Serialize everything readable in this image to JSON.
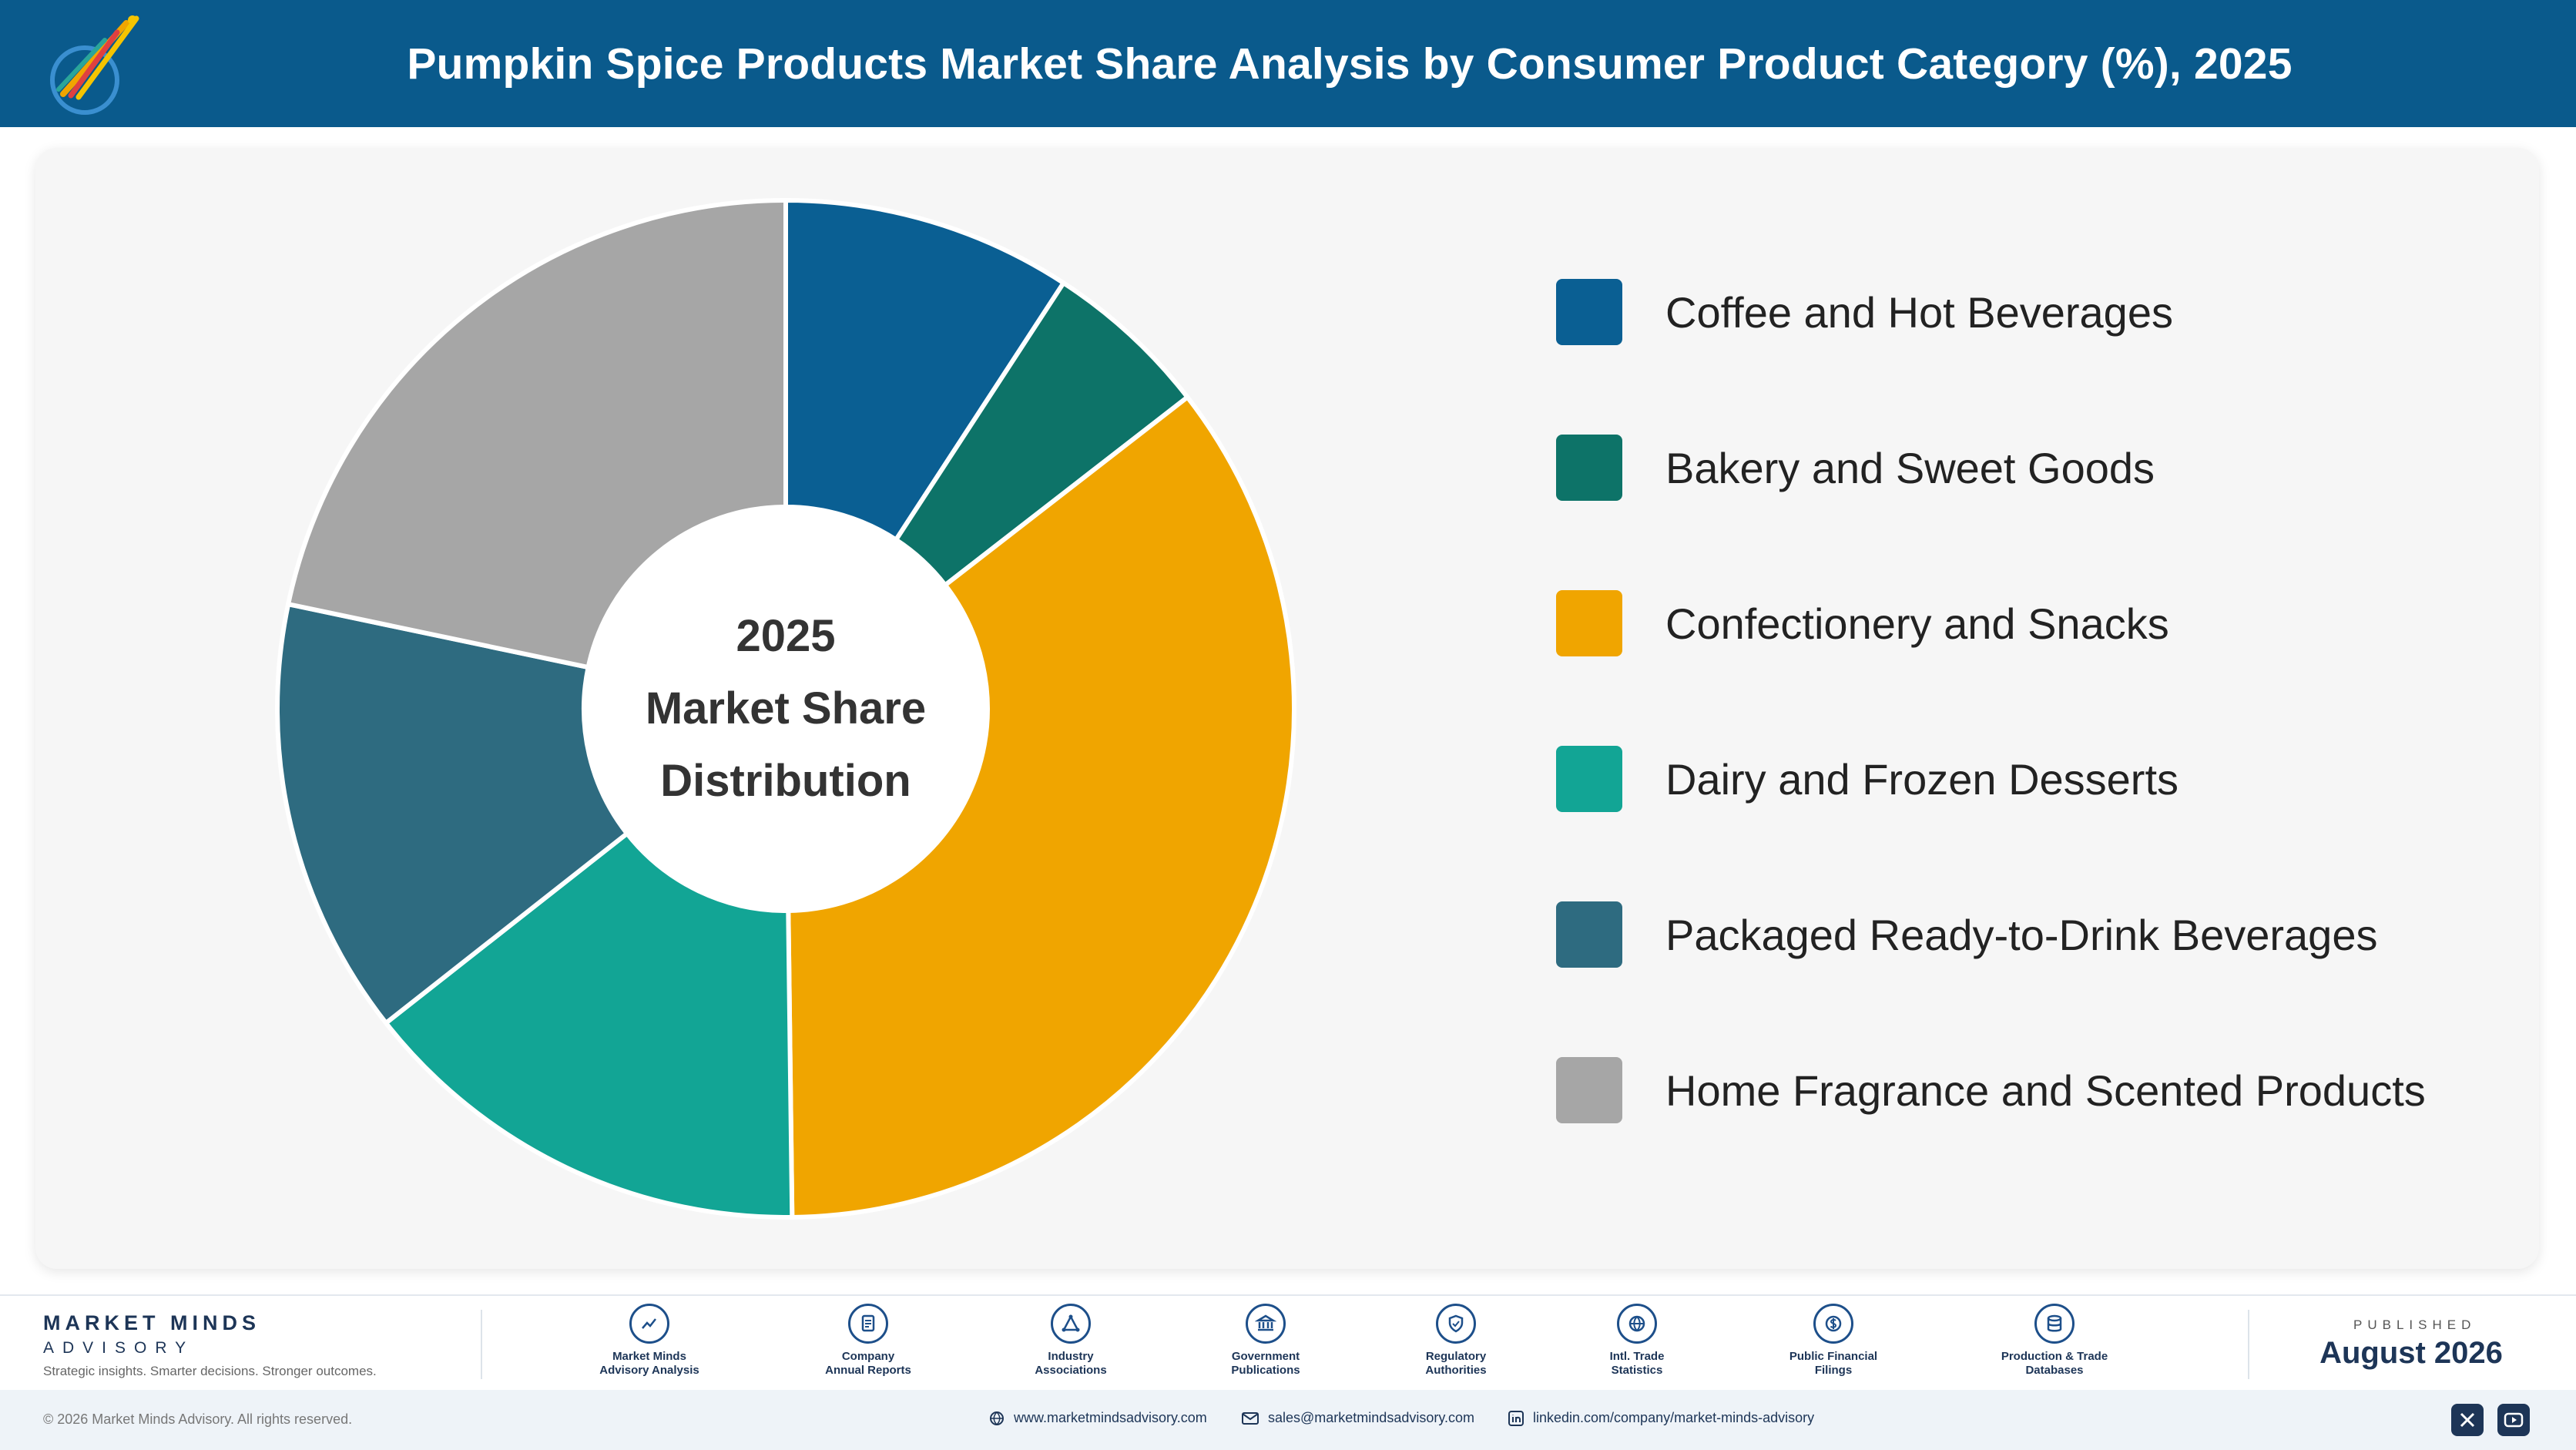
{
  "header": {
    "title": "Pumpkin Spice Products Market Share Analysis by Consumer Product Category (%), 2025",
    "logo_icon": "market-minds-logo"
  },
  "chart_data": {
    "type": "pie",
    "title": "Pumpkin Spice Products Market Share Analysis by Consumer Product Category (%), 2025",
    "center_label": [
      "2025",
      "Market Share",
      "Distribution"
    ],
    "categories": [
      "Coffee and Hot Beverages",
      "Bakery and Sweet Goods",
      "Confectionery and Snacks",
      "Dairy and Frozen Desserts",
      "Packaged Ready-to-Drink Beverages",
      "Home Fragrance and Scented Products"
    ],
    "values": [
      9.2,
      5.3,
      35.3,
      14.6,
      13.9,
      21.7
    ],
    "colors": [
      "#0a5f93",
      "#0d7368",
      "#f0a500",
      "#12a595",
      "#2e6b80",
      "#a6a6a6"
    ],
    "donut": true,
    "legend_position": "right"
  },
  "footer": {
    "brand_name": "MARKET MINDS",
    "brand_sub": "ADVISORY",
    "brand_tagline": "Strategic insights. Smarter decisions. Stronger outcomes.",
    "sources": [
      {
        "line1": "Market Minds",
        "line2": "Advisory Analysis",
        "icon": "trend-icon"
      },
      {
        "line1": "Company",
        "line2": "Annual Reports",
        "icon": "document-icon"
      },
      {
        "line1": "Industry",
        "line2": "Associations",
        "icon": "network-icon"
      },
      {
        "line1": "Government",
        "line2": "Publications",
        "icon": "government-icon"
      },
      {
        "line1": "Regulatory",
        "line2": "Authorities",
        "icon": "shield-icon"
      },
      {
        "line1": "Intl. Trade",
        "line2": "Statistics",
        "icon": "globe-icon"
      },
      {
        "line1": "Public Financial",
        "line2": "Filings",
        "icon": "dollar-icon"
      },
      {
        "line1": "Production & Trade",
        "line2": "Databases",
        "icon": "database-icon"
      }
    ],
    "published_label": "PUBLISHED",
    "published_date": "August 2026"
  },
  "bottom_bar": {
    "copyright": "© 2026 Market Minds Advisory. All rights reserved.",
    "website": "www.marketmindsadvisory.com",
    "email": "sales@marketmindsadvisory.com",
    "linkedin": "linkedin.com/company/market-minds-advisory",
    "social_icons": [
      "x-icon",
      "youtube-icon"
    ]
  }
}
